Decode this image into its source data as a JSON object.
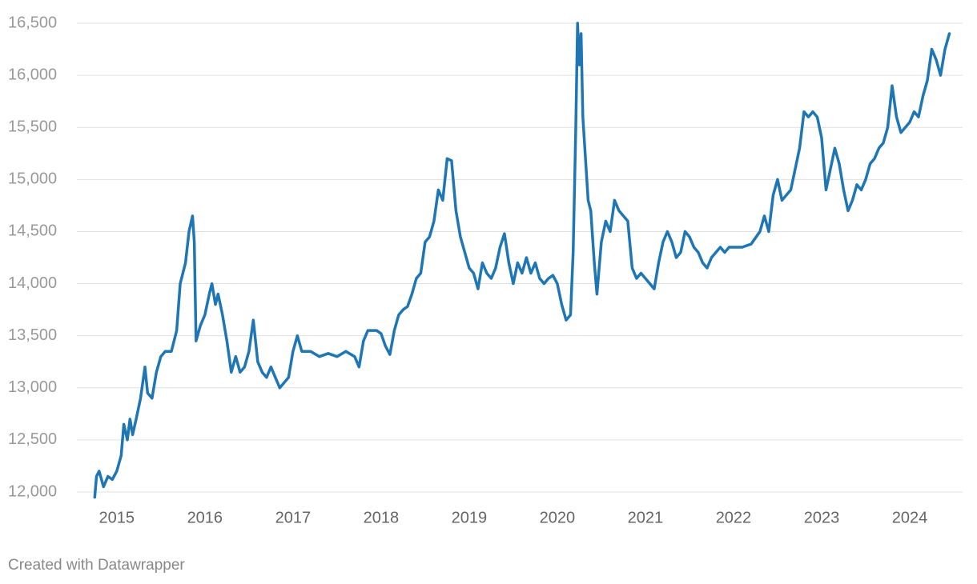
{
  "chart_data": {
    "type": "line",
    "credit": "Created with Datawrapper",
    "x": [
      2014.75,
      2014.77,
      2014.8,
      2014.85,
      2014.9,
      2014.95,
      2015.0,
      2015.05,
      2015.08,
      2015.12,
      2015.15,
      2015.18,
      2015.22,
      2015.27,
      2015.32,
      2015.35,
      2015.4,
      2015.45,
      2015.5,
      2015.55,
      2015.62,
      2015.68,
      2015.72,
      2015.78,
      2015.82,
      2015.86,
      2015.88,
      2015.9,
      2015.95,
      2016.0,
      2016.05,
      2016.08,
      2016.12,
      2016.15,
      2016.2,
      2016.25,
      2016.3,
      2016.35,
      2016.4,
      2016.45,
      2016.5,
      2016.55,
      2016.6,
      2016.65,
      2016.7,
      2016.75,
      2016.8,
      2016.85,
      2016.9,
      2016.95,
      2017.0,
      2017.05,
      2017.1,
      2017.2,
      2017.3,
      2017.4,
      2017.5,
      2017.6,
      2017.7,
      2017.75,
      2017.8,
      2017.85,
      2017.95,
      2018.0,
      2018.05,
      2018.1,
      2018.15,
      2018.2,
      2018.25,
      2018.3,
      2018.35,
      2018.4,
      2018.45,
      2018.5,
      2018.55,
      2018.6,
      2018.65,
      2018.7,
      2018.75,
      2018.8,
      2018.85,
      2018.9,
      2018.95,
      2019.0,
      2019.05,
      2019.1,
      2019.15,
      2019.2,
      2019.25,
      2019.3,
      2019.35,
      2019.4,
      2019.45,
      2019.5,
      2019.55,
      2019.6,
      2019.65,
      2019.7,
      2019.75,
      2019.8,
      2019.85,
      2019.9,
      2019.95,
      2020.0,
      2020.05,
      2020.1,
      2020.15,
      2020.18,
      2020.21,
      2020.23,
      2020.25,
      2020.27,
      2020.29,
      2020.32,
      2020.35,
      2020.38,
      2020.42,
      2020.45,
      2020.5,
      2020.55,
      2020.6,
      2020.65,
      2020.7,
      2020.75,
      2020.8,
      2020.85,
      2020.9,
      2020.95,
      2021.0,
      2021.05,
      2021.1,
      2021.15,
      2021.2,
      2021.25,
      2021.3,
      2021.35,
      2021.4,
      2021.45,
      2021.5,
      2021.55,
      2021.6,
      2021.65,
      2021.7,
      2021.75,
      2021.8,
      2021.85,
      2021.9,
      2021.95,
      2022.0,
      2022.1,
      2022.2,
      2022.3,
      2022.35,
      2022.4,
      2022.45,
      2022.5,
      2022.55,
      2022.6,
      2022.65,
      2022.7,
      2022.75,
      2022.8,
      2022.85,
      2022.9,
      2022.95,
      2023.0,
      2023.05,
      2023.1,
      2023.15,
      2023.2,
      2023.25,
      2023.3,
      2023.35,
      2023.4,
      2023.45,
      2023.5,
      2023.55,
      2023.6,
      2023.65,
      2023.7,
      2023.75,
      2023.8,
      2023.85,
      2023.9,
      2023.95,
      2024.0,
      2024.05,
      2024.1,
      2024.15,
      2024.2,
      2024.25,
      2024.3,
      2024.35,
      2024.4,
      2024.45
    ],
    "values": [
      11950,
      12150,
      12200,
      12050,
      12150,
      12120,
      12200,
      12350,
      12650,
      12500,
      12700,
      12550,
      12700,
      12900,
      13200,
      12950,
      12900,
      13150,
      13300,
      13350,
      13350,
      13550,
      14000,
      14200,
      14500,
      14650,
      14400,
      13450,
      13600,
      13700,
      13900,
      14000,
      13800,
      13900,
      13700,
      13450,
      13150,
      13300,
      13150,
      13200,
      13350,
      13650,
      13250,
      13150,
      13100,
      13200,
      13100,
      13000,
      13050,
      13100,
      13350,
      13500,
      13350,
      13350,
      13300,
      13330,
      13300,
      13350,
      13300,
      13200,
      13450,
      13550,
      13550,
      13520,
      13400,
      13320,
      13550,
      13700,
      13750,
      13780,
      13900,
      14050,
      14100,
      14400,
      14450,
      14600,
      14900,
      14800,
      15200,
      15180,
      14700,
      14450,
      14300,
      14150,
      14100,
      13950,
      14200,
      14100,
      14050,
      14150,
      14350,
      14480,
      14200,
      14000,
      14200,
      14100,
      14250,
      14100,
      14200,
      14050,
      14000,
      14050,
      14080,
      14000,
      13800,
      13650,
      13700,
      14300,
      15500,
      16500,
      16100,
      16400,
      15600,
      15200,
      14800,
      14700,
      14200,
      13900,
      14400,
      14600,
      14500,
      14800,
      14700,
      14650,
      14600,
      14150,
      14050,
      14100,
      14050,
      14000,
      13950,
      14200,
      14400,
      14500,
      14400,
      14250,
      14300,
      14500,
      14450,
      14350,
      14300,
      14200,
      14150,
      14250,
      14300,
      14350,
      14300,
      14350,
      14350,
      14350,
      14380,
      14500,
      14650,
      14500,
      14850,
      15000,
      14800,
      14850,
      14900,
      15100,
      15300,
      15650,
      15600,
      15650,
      15600,
      15400,
      14900,
      15100,
      15300,
      15150,
      14900,
      14700,
      14800,
      14950,
      14900,
      15000,
      15150,
      15200,
      15300,
      15350,
      15500,
      15900,
      15600,
      15450,
      15500,
      15550,
      15650,
      15600,
      15800,
      15950,
      16250,
      16150,
      16000,
      16250,
      16400
    ],
    "color": "#1f76b4",
    "xlim": [
      2014.72,
      2024.5
    ],
    "xticks": [
      2015,
      2016,
      2017,
      2018,
      2019,
      2020,
      2021,
      2022,
      2023,
      2024
    ],
    "ylim": [
      12000,
      16500
    ],
    "yticks": [
      {
        "value": 12000,
        "label": "12,000"
      },
      {
        "value": 12500,
        "label": "12,500"
      },
      {
        "value": 13000,
        "label": "13,000"
      },
      {
        "value": 13500,
        "label": "13,500"
      },
      {
        "value": 14000,
        "label": "14,000"
      },
      {
        "value": 14500,
        "label": "14,500"
      },
      {
        "value": 15000,
        "label": "15,000"
      },
      {
        "value": 15500,
        "label": "15,500"
      },
      {
        "value": 16000,
        "label": "16,000"
      },
      {
        "value": 16500,
        "label": "16,500"
      }
    ],
    "grid": true
  }
}
